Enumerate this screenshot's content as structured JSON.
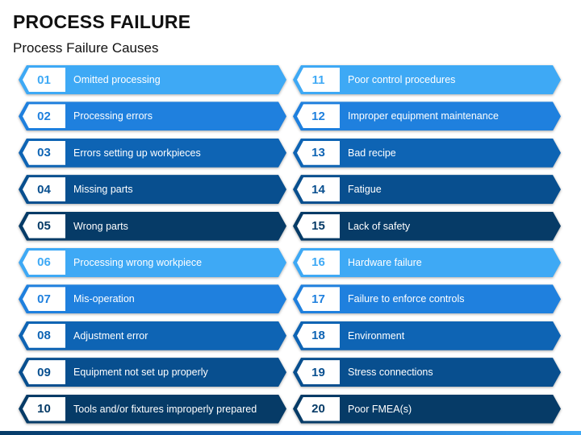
{
  "title": "PROCESS FAILURE",
  "subtitle": "Process Failure Causes",
  "colors": {
    "shade1": "#3ea9f5",
    "shade2": "#1f80de",
    "shade3": "#0e64b4",
    "shade4": "#084f8f",
    "shade5": "#063b67"
  },
  "left_items": [
    {
      "num": "01",
      "label": "Omitted processing"
    },
    {
      "num": "02",
      "label": "Processing errors"
    },
    {
      "num": "03",
      "label": "Errors setting up workpieces"
    },
    {
      "num": "04",
      "label": "Missing parts"
    },
    {
      "num": "05",
      "label": "Wrong parts"
    },
    {
      "num": "06",
      "label": "Processing wrong workpiece"
    },
    {
      "num": "07",
      "label": "Mis-operation"
    },
    {
      "num": "08",
      "label": "Adjustment error"
    },
    {
      "num": "09",
      "label": "Equipment not set up properly"
    },
    {
      "num": "10",
      "label": "Tools and/or fixtures improperly prepared"
    }
  ],
  "right_items": [
    {
      "num": "11",
      "label": "Poor control procedures"
    },
    {
      "num": "12",
      "label": "Improper equipment maintenance"
    },
    {
      "num": "13",
      "label": "Bad recipe"
    },
    {
      "num": "14",
      "label": "Fatigue"
    },
    {
      "num": "15",
      "label": "Lack of safety"
    },
    {
      "num": "16",
      "label": "Hardware failure"
    },
    {
      "num": "17",
      "label": "Failure to enforce controls"
    },
    {
      "num": "18",
      "label": "Environment"
    },
    {
      "num": "19",
      "label": "Stress connections"
    },
    {
      "num": "20",
      "label": "Poor FMEA(s)"
    }
  ]
}
